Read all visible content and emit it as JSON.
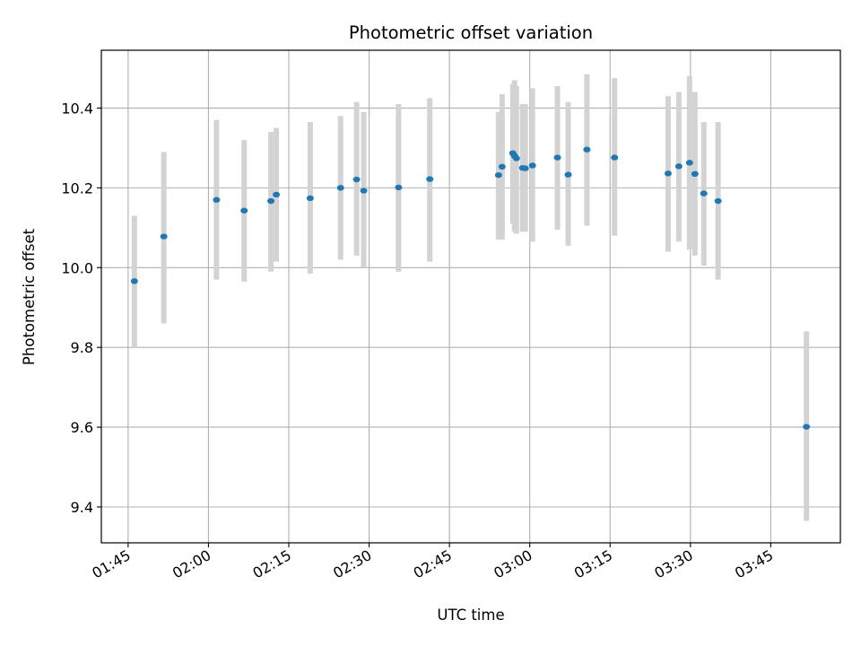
{
  "chart_data": {
    "type": "scatter",
    "title": "Photometric offset variation",
    "xlabel": "UTC time",
    "ylabel": "Photometric offset",
    "x_ticks": [
      "01:45",
      "02:00",
      "02:15",
      "02:30",
      "02:45",
      "03:00",
      "03:15",
      "03:30",
      "03:45"
    ],
    "y_ticks": [
      "9.4",
      "9.6",
      "9.8",
      "10.0",
      "10.2",
      "10.4"
    ],
    "xlim": [
      "01:40",
      "03:58"
    ],
    "ylim": [
      9.31,
      10.545
    ],
    "grid": true,
    "colors": {
      "points": "#1f77b4",
      "errorbars": "#d3d3d3",
      "grid": "#b0b0b0"
    },
    "points": [
      {
        "t": "01:46:10",
        "y": 9.966,
        "lo": 9.8,
        "hi": 10.13
      },
      {
        "t": "01:51:40",
        "y": 10.078,
        "lo": 9.86,
        "hi": 10.29
      },
      {
        "t": "02:01:30",
        "y": 10.17,
        "lo": 9.97,
        "hi": 10.37
      },
      {
        "t": "02:06:40",
        "y": 10.143,
        "lo": 9.965,
        "hi": 10.32
      },
      {
        "t": "02:11:40",
        "y": 10.167,
        "lo": 9.99,
        "hi": 10.34
      },
      {
        "t": "02:12:40",
        "y": 10.183,
        "lo": 10.015,
        "hi": 10.35
      },
      {
        "t": "02:19:00",
        "y": 10.174,
        "lo": 9.985,
        "hi": 10.365
      },
      {
        "t": "02:24:40",
        "y": 10.2,
        "lo": 10.02,
        "hi": 10.38
      },
      {
        "t": "02:27:40",
        "y": 10.221,
        "lo": 10.03,
        "hi": 10.415
      },
      {
        "t": "02:29:00",
        "y": 10.193,
        "lo": 10.0,
        "hi": 10.39
      },
      {
        "t": "02:35:30",
        "y": 10.201,
        "lo": 9.99,
        "hi": 10.41
      },
      {
        "t": "02:41:20",
        "y": 10.222,
        "lo": 10.015,
        "hi": 10.425
      },
      {
        "t": "02:54:10",
        "y": 10.232,
        "lo": 10.07,
        "hi": 10.39
      },
      {
        "t": "02:54:50",
        "y": 10.253,
        "lo": 10.07,
        "hi": 10.435
      },
      {
        "t": "02:56:50",
        "y": 10.287,
        "lo": 10.11,
        "hi": 10.46
      },
      {
        "t": "02:57:10",
        "y": 10.28,
        "lo": 10.09,
        "hi": 10.47
      },
      {
        "t": "02:57:30",
        "y": 10.274,
        "lo": 10.085,
        "hi": 10.455
      },
      {
        "t": "02:58:40",
        "y": 10.25,
        "lo": 10.09,
        "hi": 10.41
      },
      {
        "t": "02:59:10",
        "y": 10.249,
        "lo": 10.09,
        "hi": 10.41
      },
      {
        "t": "03:00:30",
        "y": 10.256,
        "lo": 10.065,
        "hi": 10.45
      },
      {
        "t": "03:05:10",
        "y": 10.276,
        "lo": 10.095,
        "hi": 10.455
      },
      {
        "t": "03:07:10",
        "y": 10.233,
        "lo": 10.055,
        "hi": 10.415
      },
      {
        "t": "03:10:40",
        "y": 10.296,
        "lo": 10.105,
        "hi": 10.485
      },
      {
        "t": "03:15:50",
        "y": 10.276,
        "lo": 10.08,
        "hi": 10.475
      },
      {
        "t": "03:25:50",
        "y": 10.236,
        "lo": 10.04,
        "hi": 10.43
      },
      {
        "t": "03:27:50",
        "y": 10.254,
        "lo": 10.065,
        "hi": 10.44
      },
      {
        "t": "03:29:50",
        "y": 10.263,
        "lo": 10.045,
        "hi": 10.48
      },
      {
        "t": "03:30:50",
        "y": 10.235,
        "lo": 10.03,
        "hi": 10.44
      },
      {
        "t": "03:32:30",
        "y": 10.186,
        "lo": 10.005,
        "hi": 10.365
      },
      {
        "t": "03:35:10",
        "y": 10.167,
        "lo": 9.97,
        "hi": 10.365
      },
      {
        "t": "03:51:40",
        "y": 9.601,
        "lo": 9.365,
        "hi": 9.84
      }
    ]
  }
}
